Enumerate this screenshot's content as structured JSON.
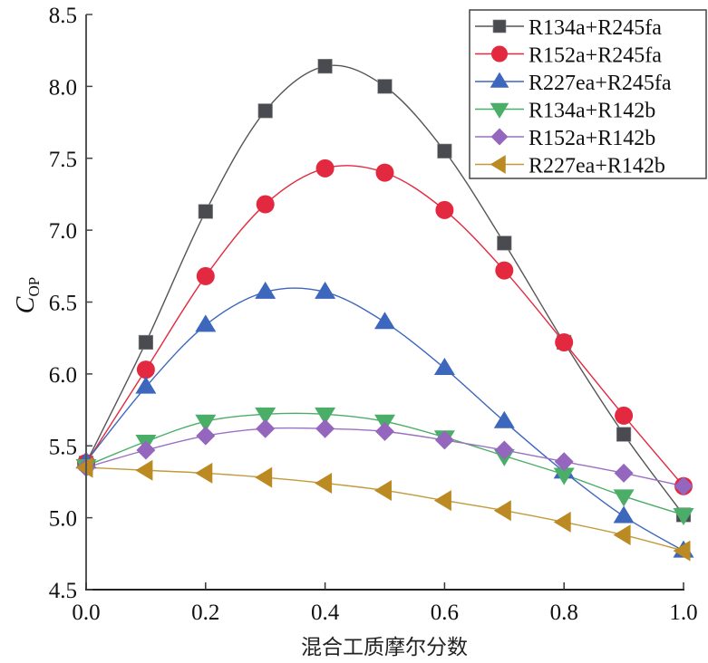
{
  "chart_data": {
    "type": "line",
    "title": "",
    "xlabel": "混合工质摩尔分数",
    "ylabel": {
      "main": "C",
      "subscript": "OP"
    },
    "xlim": [
      0.0,
      1.0
    ],
    "ylim": [
      4.5,
      8.5
    ],
    "xticks": [
      "0.0",
      "0.2",
      "0.4",
      "0.6",
      "0.8",
      "1.0"
    ],
    "xtick_values": [
      0.0,
      0.2,
      0.4,
      0.6,
      0.8,
      1.0
    ],
    "yticks": [
      "4.5",
      "5.0",
      "5.5",
      "6.0",
      "6.5",
      "7.0",
      "7.5",
      "8.0",
      "8.5"
    ],
    "ytick_values": [
      4.5,
      5.0,
      5.5,
      6.0,
      6.5,
      7.0,
      7.5,
      8.0,
      8.5
    ],
    "grid": false,
    "legend_position": "top-right",
    "x": [
      0.0,
      0.1,
      0.2,
      0.3,
      0.4,
      0.5,
      0.6,
      0.7,
      0.8,
      0.9,
      1.0
    ],
    "series": [
      {
        "name": "R134a+R245fa",
        "color": "#4a4b50",
        "line_color": "#555555",
        "marker": "square",
        "values": [
          5.38,
          6.22,
          7.13,
          7.83,
          8.14,
          8.0,
          7.55,
          6.91,
          6.22,
          5.58,
          5.02
        ]
      },
      {
        "name": "R152a+R245fa",
        "color": "#e2293f",
        "line_color": "#e2293f",
        "marker": "circle",
        "values": [
          5.38,
          6.03,
          6.68,
          7.18,
          7.43,
          7.4,
          7.14,
          6.72,
          6.22,
          5.71,
          5.22
        ]
      },
      {
        "name": "R227ea+R245fa",
        "color": "#3d66bd",
        "line_color": "#3d66bd",
        "marker": "triangle-up",
        "values": [
          5.39,
          5.91,
          6.34,
          6.57,
          6.57,
          6.36,
          6.04,
          5.67,
          5.32,
          5.01,
          4.77
        ]
      },
      {
        "name": "R134a+R142b",
        "color": "#4aad68",
        "line_color": "#4aad68",
        "marker": "triangle-down",
        "values": [
          5.36,
          5.53,
          5.67,
          5.72,
          5.72,
          5.67,
          5.56,
          5.43,
          5.3,
          5.15,
          5.02
        ]
      },
      {
        "name": "R152a+R142b",
        "color": "#9466bd",
        "line_color": "#9a70c4",
        "marker": "diamond",
        "values": [
          5.35,
          5.47,
          5.57,
          5.62,
          5.62,
          5.6,
          5.54,
          5.47,
          5.39,
          5.31,
          5.22
        ]
      },
      {
        "name": "R227ea+R142b",
        "color": "#bb8a22",
        "line_color": "#c29a3a",
        "marker": "triangle-left",
        "values": [
          5.35,
          5.33,
          5.31,
          5.28,
          5.24,
          5.19,
          5.12,
          5.05,
          4.97,
          4.88,
          4.77
        ]
      }
    ]
  }
}
